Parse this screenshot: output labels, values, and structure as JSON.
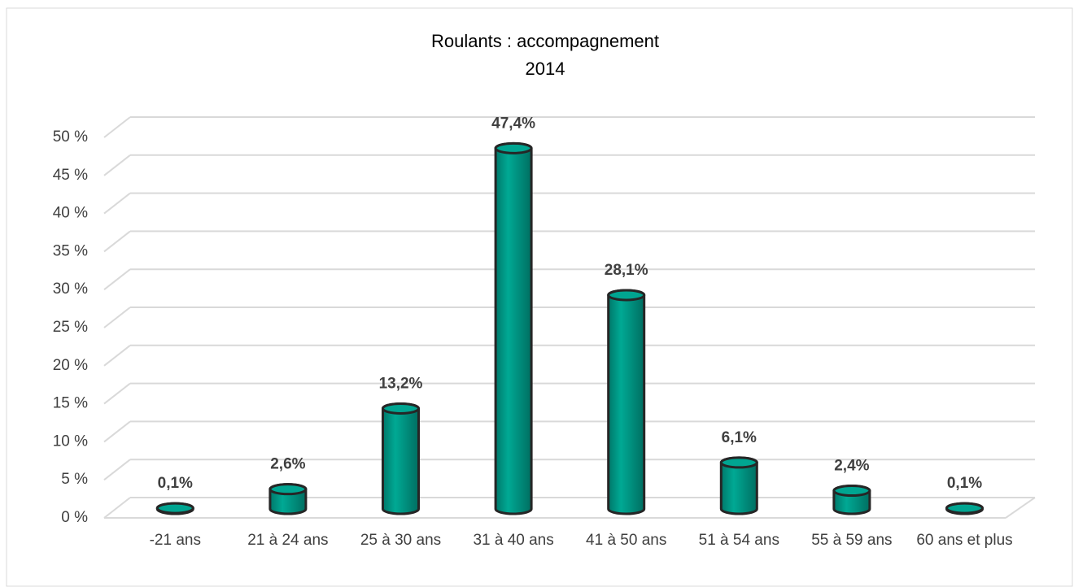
{
  "chart_data": {
    "type": "bar",
    "title": "Roulants : accompagnement",
    "subtitle": "2014",
    "categories": [
      "-21 ans",
      "21 à 24 ans",
      "25 à 30 ans",
      "31 à 40 ans",
      "41 à 50 ans",
      "51 à 54 ans",
      "55 à 59 ans",
      "60 ans et plus"
    ],
    "values": [
      0.1,
      2.6,
      13.2,
      47.4,
      28.1,
      6.1,
      2.4,
      0.1
    ],
    "value_labels": [
      "0,1%",
      "2,6%",
      "13,2%",
      "47,4%",
      "28,1%",
      "6,1%",
      "2,4%",
      "0,1%"
    ],
    "color": "#009e8c",
    "ylim": [
      0,
      50
    ],
    "yticks": [
      {
        "value": 0,
        "label": "0 %"
      },
      {
        "value": 5,
        "label": "5 %"
      },
      {
        "value": 10,
        "label": "10 %"
      },
      {
        "value": 15,
        "label": "15 %"
      },
      {
        "value": 20,
        "label": "20 %"
      },
      {
        "value": 25,
        "label": "25 %"
      },
      {
        "value": 30,
        "label": "30 %"
      },
      {
        "value": 35,
        "label": "35 %"
      },
      {
        "value": 40,
        "label": "40 %"
      },
      {
        "value": 45,
        "label": "45 %"
      },
      {
        "value": 50,
        "label": "50 %"
      }
    ],
    "grid": true
  }
}
